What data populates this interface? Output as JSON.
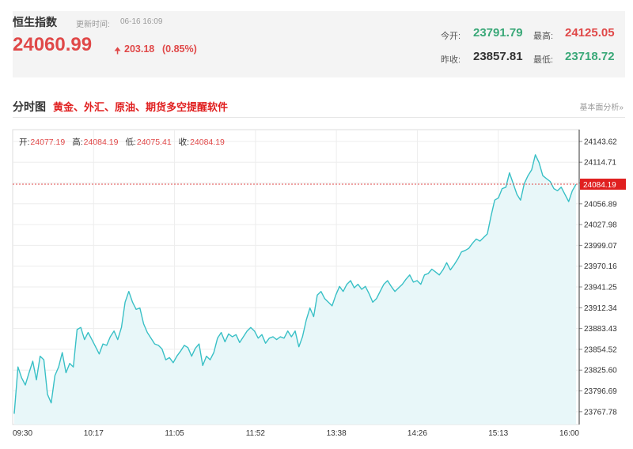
{
  "header": {
    "title": "恒生指数",
    "updated_label": "更新时间:",
    "updated_value": "06-16 16:09",
    "price": "24060.99",
    "change_arrow": "🠉",
    "change_value": "203.18",
    "change_percent": "(0.85%)",
    "open_label": "今开:",
    "open_value": "23791.79",
    "high_label": "最高:",
    "high_value": "24125.05",
    "prev_close_label": "昨收:",
    "prev_close_value": "23857.81",
    "low_label": "最低:",
    "low_value": "23718.72"
  },
  "section": {
    "title": "分时图",
    "promo_link": "黄金、外汇、原油、期货多空提醒软件",
    "right_link": "基本面分析»"
  },
  "colors": {
    "up": "#e04848",
    "down": "#3aa878",
    "line": "#39c0c6",
    "fill": "#e8f7f9"
  },
  "chart_data": {
    "type": "area",
    "ohlc": {
      "open_label": "开:",
      "open": "24077.19",
      "high_label": "高:",
      "high": "24084.19",
      "low_label": "低:",
      "low": "24075.41",
      "close_label": "收:",
      "close": "24084.19"
    },
    "last_price_label": "24084.19",
    "last_price": 24084.19,
    "ylim": [
      23750,
      24160
    ],
    "y_ticks": [
      24143.62,
      24114.71,
      24085.8,
      24056.89,
      24027.98,
      23999.07,
      23970.16,
      23941.25,
      23912.34,
      23883.43,
      23854.52,
      23825.6,
      23796.69,
      23767.78
    ],
    "y_tick_labels": [
      "24143.62",
      "24114.71",
      "24085.80",
      "24056.89",
      "24027.98",
      "23999.07",
      "23970.16",
      "23941.25",
      "23912.34",
      "23883.43",
      "23854.52",
      "23825.60",
      "23796.69",
      "23767.78"
    ],
    "x_tick_labels": [
      "09:30",
      "10:17",
      "11:05",
      "11:52",
      "13:38",
      "14:26",
      "15:13",
      "16:00"
    ],
    "series": [
      {
        "values": [
          23765,
          23830,
          23815,
          23805,
          23822,
          23838,
          23812,
          23845,
          23840,
          23792,
          23780,
          23818,
          23830,
          23850,
          23822,
          23835,
          23830,
          23882,
          23885,
          23868,
          23878,
          23868,
          23858,
          23848,
          23862,
          23860,
          23872,
          23880,
          23868,
          23885,
          23920,
          23935,
          23920,
          23910,
          23912,
          23890,
          23878,
          23870,
          23862,
          23860,
          23855,
          23840,
          23843,
          23836,
          23845,
          23852,
          23860,
          23857,
          23845,
          23856,
          23862,
          23832,
          23845,
          23840,
          23850,
          23870,
          23878,
          23865,
          23876,
          23872,
          23875,
          23864,
          23872,
          23880,
          23885,
          23880,
          23870,
          23875,
          23863,
          23870,
          23872,
          23868,
          23872,
          23870,
          23880,
          23872,
          23880,
          23858,
          23872,
          23895,
          23912,
          23900,
          23930,
          23935,
          23925,
          23920,
          23915,
          23930,
          23942,
          23935,
          23945,
          23950,
          23940,
          23945,
          23938,
          23942,
          23932,
          23920,
          23925,
          23935,
          23945,
          23950,
          23942,
          23935,
          23940,
          23945,
          23952,
          23958,
          23948,
          23950,
          23945,
          23958,
          23960,
          23966,
          23962,
          23958,
          23965,
          23975,
          23965,
          23972,
          23980,
          23990,
          23992,
          23995,
          24002,
          24008,
          24005,
          24010,
          24015,
          24040,
          24062,
          24065,
          24078,
          24080,
          24100,
          24085,
          24070,
          24062,
          24085,
          24096,
          24104,
          24125,
          24114,
          24096,
          24092,
          24088,
          24078,
          24075,
          24080,
          24070,
          24060,
          24075,
          24084
        ]
      }
    ]
  }
}
